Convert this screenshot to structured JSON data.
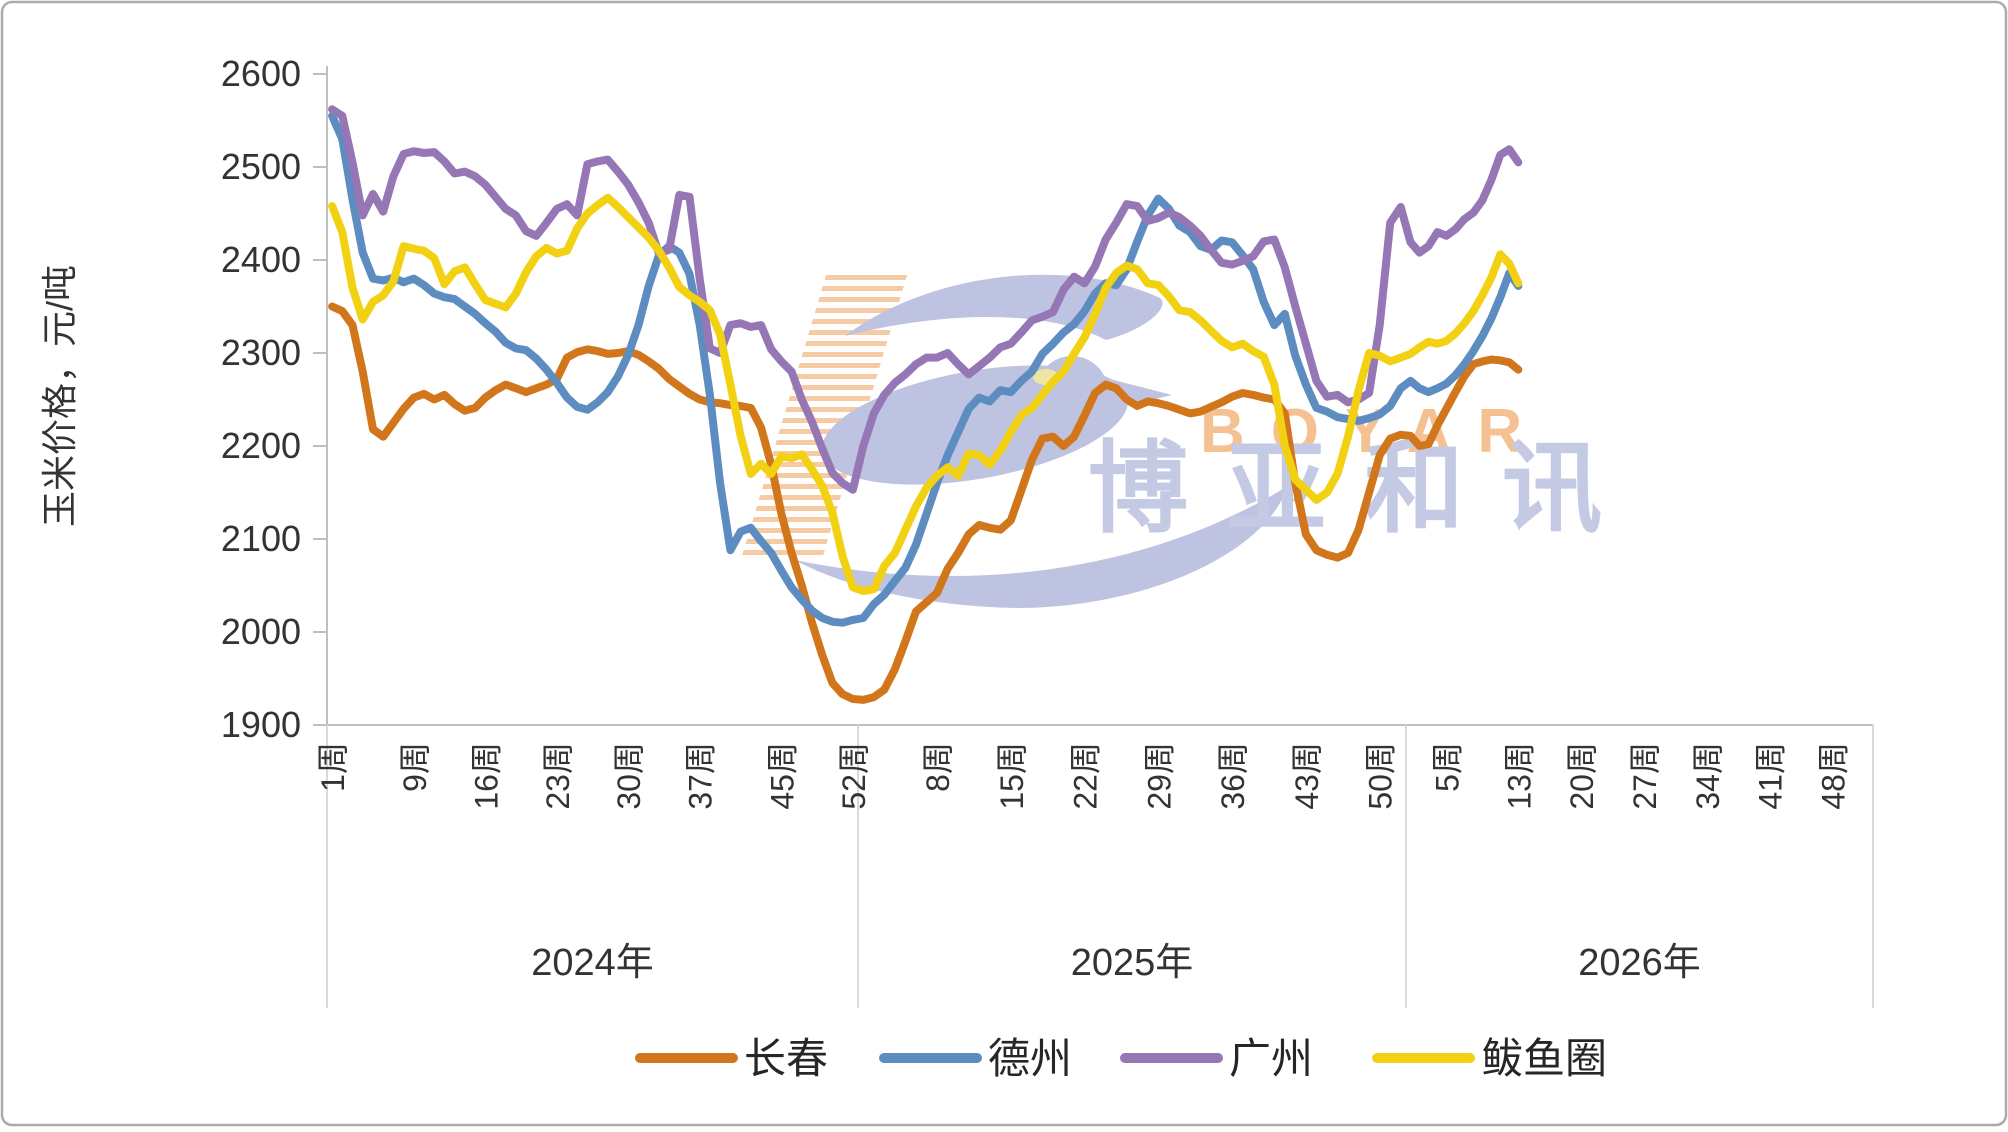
{
  "chart_data": {
    "type": "line",
    "title": "",
    "ylabel": "玉米价格，元/吨",
    "y_axis": {
      "min": 1900,
      "max": 2600,
      "step": 100,
      "ticks": [
        1900,
        2000,
        2100,
        2200,
        2300,
        2400,
        2500,
        2600
      ]
    },
    "x_axis": {
      "total_week_slots": 156,
      "data_weeks": 117,
      "ticks": [
        {
          "label": "1周",
          "week": 1
        },
        {
          "label": "9周",
          "week": 9
        },
        {
          "label": "16周",
          "week": 16
        },
        {
          "label": "23周",
          "week": 23
        },
        {
          "label": "30周",
          "week": 30
        },
        {
          "label": "37周",
          "week": 37
        },
        {
          "label": "45周",
          "week": 45
        },
        {
          "label": "52周",
          "week": 52
        },
        {
          "label": "8周",
          "week": 60
        },
        {
          "label": "15周",
          "week": 67
        },
        {
          "label": "22周",
          "week": 74
        },
        {
          "label": "29周",
          "week": 81
        },
        {
          "label": "36周",
          "week": 88
        },
        {
          "label": "43周",
          "week": 95
        },
        {
          "label": "50周",
          "week": 102
        },
        {
          "label": "5周",
          "week": 109
        },
        {
          "label": "13周",
          "week": 117
        },
        {
          "label": "20周",
          "week": 124
        },
        {
          "label": "27周",
          "week": 131
        },
        {
          "label": "34周",
          "week": 138
        },
        {
          "label": "41周",
          "week": 145
        },
        {
          "label": "48周",
          "week": 152
        }
      ],
      "year_groups": [
        {
          "label": "2024年",
          "start_week": 1,
          "end_week": 52
        },
        {
          "label": "2025年",
          "start_week": 53,
          "end_week": 104
        },
        {
          "label": "2026年",
          "start_week": 105,
          "end_week": 156
        }
      ]
    },
    "legend_position": "bottom",
    "series": [
      {
        "name": "长春",
        "color": "#D2761C",
        "values": [
          2350,
          2345,
          2330,
          2280,
          2218,
          2210,
          2225,
          2240,
          2252,
          2256,
          2250,
          2255,
          2245,
          2238,
          2241,
          2252,
          2260,
          2266,
          2262,
          2258,
          2262,
          2266,
          2272,
          2295,
          2301,
          2304,
          2302,
          2299,
          2300,
          2302,
          2298,
          2291,
          2283,
          2272,
          2264,
          2256,
          2250,
          2247,
          2246,
          2244,
          2243,
          2241,
          2220,
          2180,
          2127,
          2085,
          2050,
          2010,
          1975,
          1945,
          1933,
          1928,
          1927,
          1930,
          1938,
          1960,
          1990,
          2022,
          2032,
          2042,
          2068,
          2085,
          2105,
          2115,
          2112,
          2110,
          2120,
          2152,
          2185,
          2208,
          2210,
          2200,
          2210,
          2233,
          2257,
          2266,
          2262,
          2250,
          2243,
          2248,
          2246,
          2243,
          2239,
          2235,
          2237,
          2242,
          2247,
          2253,
          2257,
          2255,
          2252,
          2250,
          2235,
          2160,
          2105,
          2088,
          2083,
          2080,
          2085,
          2110,
          2150,
          2190,
          2208,
          2212,
          2211,
          2200,
          2202,
          2222,
          2240,
          2258,
          2275,
          2288,
          2291,
          2293,
          2292,
          2290,
          2282
        ]
      },
      {
        "name": "德州",
        "color": "#5C8CC0",
        "values": [
          2555,
          2530,
          2465,
          2408,
          2380,
          2378,
          2381,
          2376,
          2380,
          2373,
          2364,
          2360,
          2358,
          2350,
          2342,
          2332,
          2323,
          2311,
          2305,
          2303,
          2294,
          2282,
          2268,
          2252,
          2242,
          2239,
          2247,
          2258,
          2275,
          2298,
          2330,
          2372,
          2405,
          2415,
          2408,
          2385,
          2330,
          2255,
          2160,
          2088,
          2108,
          2112,
          2098,
          2085,
          2066,
          2048,
          2035,
          2023,
          2015,
          2011,
          2010,
          2013,
          2015,
          2030,
          2040,
          2055,
          2069,
          2094,
          2127,
          2160,
          2190,
          2215,
          2240,
          2252,
          2248,
          2260,
          2258,
          2270,
          2280,
          2299,
          2310,
          2322,
          2331,
          2345,
          2364,
          2375,
          2373,
          2390,
          2420,
          2448,
          2466,
          2455,
          2437,
          2430,
          2415,
          2411,
          2421,
          2419,
          2405,
          2390,
          2355,
          2330,
          2342,
          2297,
          2266,
          2241,
          2237,
          2231,
          2229,
          2227,
          2230,
          2234,
          2243,
          2262,
          2270,
          2262,
          2258,
          2262,
          2267,
          2276,
          2288,
          2302,
          2318,
          2337,
          2360,
          2386,
          2372
        ]
      },
      {
        "name": "广州",
        "color": "#9677B5",
        "values": [
          2562,
          2555,
          2505,
          2448,
          2471,
          2452,
          2490,
          2514,
          2517,
          2515,
          2516,
          2506,
          2493,
          2495,
          2490,
          2481,
          2468,
          2455,
          2448,
          2431,
          2426,
          2440,
          2455,
          2460,
          2448,
          2503,
          2506,
          2508,
          2495,
          2481,
          2462,
          2440,
          2407,
          2411,
          2470,
          2468,
          2380,
          2305,
          2300,
          2330,
          2332,
          2328,
          2330,
          2304,
          2291,
          2280,
          2250,
          2226,
          2197,
          2171,
          2160,
          2153,
          2200,
          2235,
          2255,
          2268,
          2277,
          2288,
          2295,
          2295,
          2300,
          2288,
          2277,
          2286,
          2295,
          2306,
          2310,
          2322,
          2335,
          2339,
          2344,
          2368,
          2382,
          2375,
          2393,
          2422,
          2440,
          2460,
          2458,
          2442,
          2445,
          2451,
          2446,
          2437,
          2426,
          2411,
          2397,
          2395,
          2399,
          2404,
          2420,
          2422,
          2392,
          2350,
          2310,
          2270,
          2253,
          2255,
          2247,
          2250,
          2257,
          2330,
          2440,
          2457,
          2419,
          2408,
          2415,
          2430,
          2426,
          2433,
          2444,
          2451,
          2464,
          2486,
          2513,
          2519,
          2505
        ]
      },
      {
        "name": "鲅鱼圈",
        "color": "#F1D112",
        "values": [
          2458,
          2430,
          2370,
          2336,
          2355,
          2362,
          2377,
          2415,
          2412,
          2410,
          2402,
          2374,
          2388,
          2392,
          2374,
          2357,
          2353,
          2349,
          2364,
          2387,
          2404,
          2413,
          2407,
          2410,
          2434,
          2450,
          2459,
          2467,
          2457,
          2446,
          2435,
          2424,
          2410,
          2392,
          2371,
          2362,
          2355,
          2346,
          2320,
          2266,
          2211,
          2170,
          2181,
          2170,
          2189,
          2187,
          2191,
          2175,
          2157,
          2128,
          2081,
          2048,
          2044,
          2046,
          2071,
          2085,
          2110,
          2135,
          2155,
          2168,
          2177,
          2168,
          2192,
          2190,
          2180,
          2195,
          2215,
          2233,
          2241,
          2255,
          2269,
          2280,
          2299,
          2317,
          2342,
          2370,
          2386,
          2394,
          2390,
          2375,
          2373,
          2361,
          2346,
          2344,
          2335,
          2324,
          2313,
          2306,
          2310,
          2302,
          2296,
          2266,
          2200,
          2164,
          2153,
          2142,
          2150,
          2170,
          2210,
          2260,
          2300,
          2297,
          2291,
          2295,
          2299,
          2306,
          2312,
          2310,
          2313,
          2321,
          2332,
          2345,
          2362,
          2381,
          2406,
          2396,
          2375
        ]
      }
    ],
    "watermark": {
      "cn": "博亚和讯",
      "en": "BOYAR"
    },
    "colors": {
      "axis_line": "#BFBFBF",
      "separator": "#D9D9D9",
      "tick_text": "#333333",
      "watermark_bird": "#BDC3E0",
      "watermark_text_cn": "#C5CAE4",
      "watermark_text_en": "#F5C193",
      "watermark_hatch": "#F6CBA4",
      "watermark_eye": "#EEE5A1",
      "frame": "#ABABAB"
    }
  }
}
